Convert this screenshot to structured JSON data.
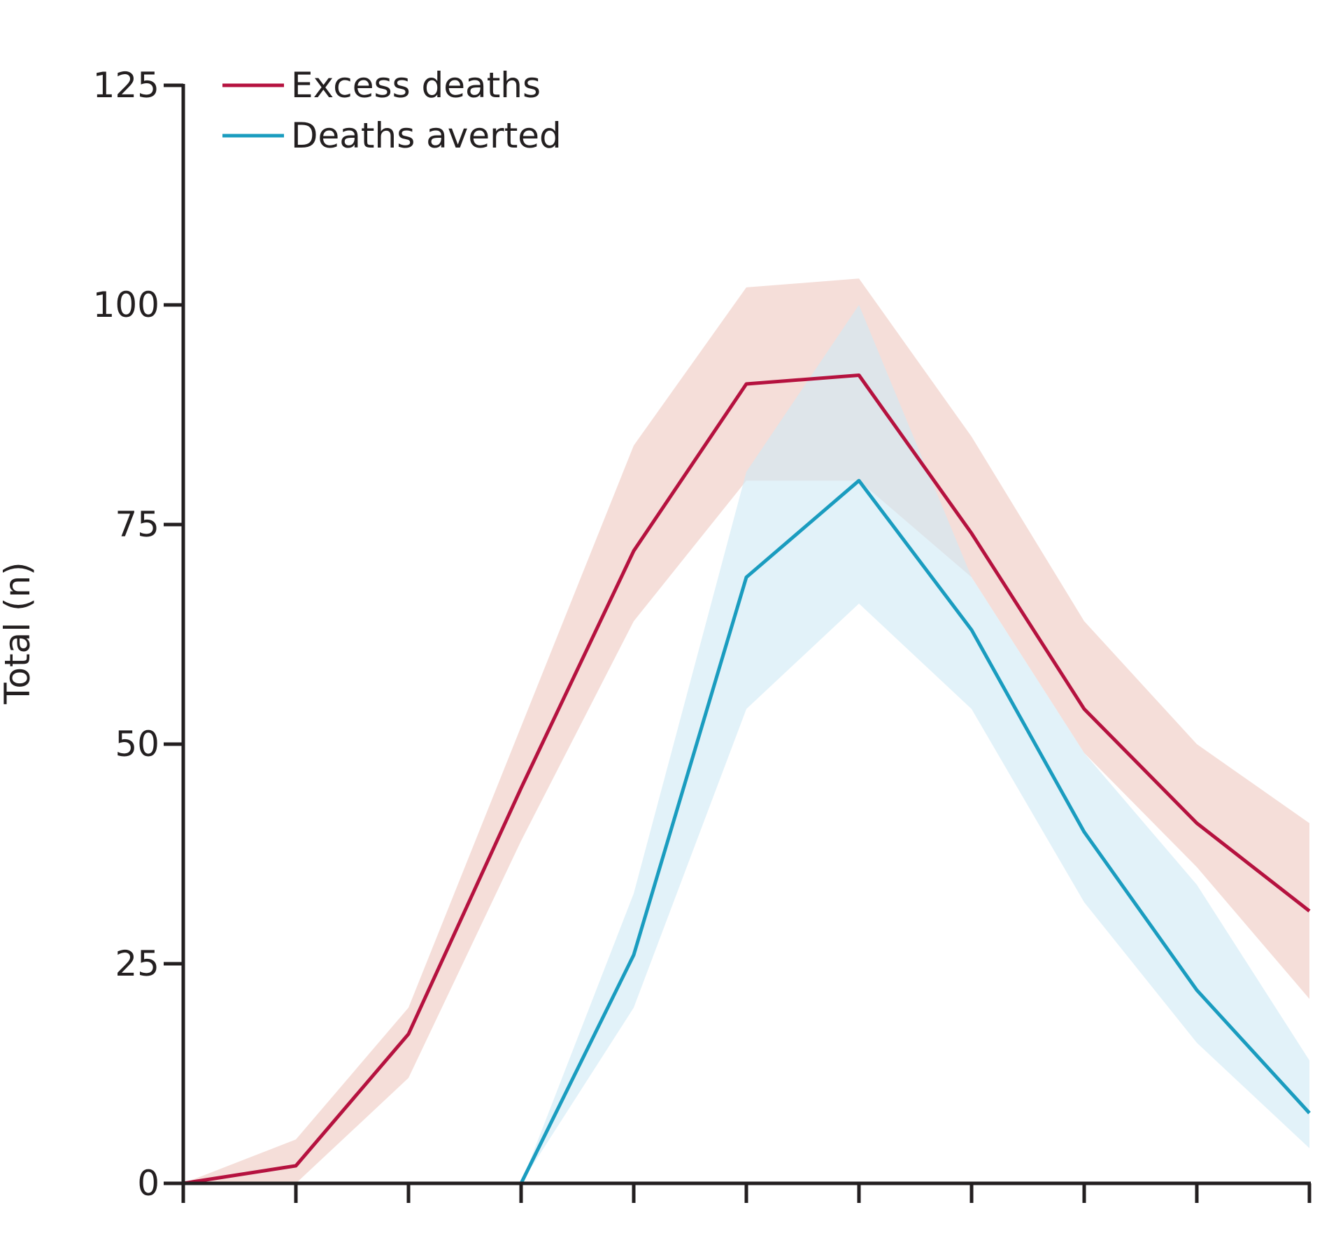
{
  "chart_data": {
    "type": "line",
    "title": "",
    "xlabel": "",
    "ylabel": "Total (n)",
    "x": [
      0,
      1,
      2,
      3,
      4,
      5,
      6,
      7,
      8,
      9,
      10
    ],
    "xlim": [
      0,
      10
    ],
    "ylim": [
      0,
      125
    ],
    "yticks": [
      0,
      25,
      50,
      75,
      100,
      125
    ],
    "yticklabels": [
      "0",
      "25",
      "50",
      "75",
      "100",
      "125"
    ],
    "grid": false,
    "legend_position": "top-left",
    "series": [
      {
        "name": "Excess deaths",
        "color": "#b5123f",
        "band_color": "#f2d3cc",
        "values": [
          0,
          2,
          17,
          45,
          72,
          91,
          92,
          74,
          54,
          41,
          31
        ],
        "lower": [
          0,
          0,
          12,
          39,
          64,
          80,
          80,
          69,
          49,
          36,
          21
        ],
        "upper": [
          0,
          5,
          20,
          52,
          84,
          102,
          103,
          85,
          64,
          50,
          41
        ]
      },
      {
        "name": "Deaths averted",
        "color": "#1a9cbf",
        "band_color": "#cfe9f5",
        "values": [
          0,
          0,
          0,
          0,
          26,
          69,
          80,
          63,
          40,
          22,
          8
        ],
        "lower": [
          0,
          0,
          0,
          0,
          20,
          54,
          66,
          54,
          32,
          16,
          4
        ],
        "upper": [
          0,
          0,
          0,
          0,
          33,
          81,
          100,
          69,
          49,
          34,
          14
        ]
      }
    ]
  }
}
